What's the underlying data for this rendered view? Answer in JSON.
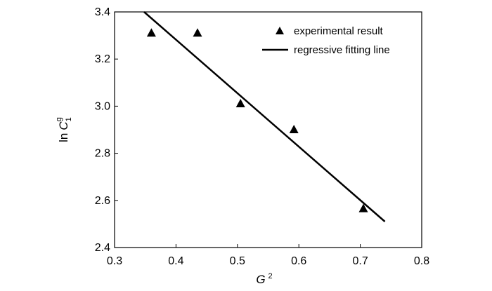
{
  "chart_data": {
    "type": "scatter",
    "title": "",
    "xlabel": "G",
    "xlabel_sup": "2",
    "ylabel_prefix": "ln",
    "ylabel_var": "C",
    "ylabel_sub": "1",
    "ylabel_sup": "g",
    "xlim": [
      0.3,
      0.8
    ],
    "ylim": [
      2.4,
      3.4
    ],
    "xticks": [
      0.3,
      0.4,
      0.5,
      0.6,
      0.7,
      0.8
    ],
    "xtick_labels": [
      "0.3",
      "0.4",
      "0.5",
      "0.6",
      "0.7",
      "0.8"
    ],
    "yticks": [
      2.4,
      2.6,
      2.8,
      3.0,
      3.2,
      3.4
    ],
    "ytick_labels": [
      "2.4",
      "2.6",
      "2.8",
      "3.0",
      "3.2",
      "3.4"
    ],
    "grid": false,
    "legend_position": "top-right",
    "series": [
      {
        "name": "experimental result",
        "marker": "triangle",
        "color": "#000000",
        "points": [
          {
            "x": 0.36,
            "y": 3.31
          },
          {
            "x": 0.435,
            "y": 3.31
          },
          {
            "x": 0.505,
            "y": 3.01
          },
          {
            "x": 0.592,
            "y": 2.9
          },
          {
            "x": 0.705,
            "y": 2.565
          }
        ]
      },
      {
        "name": "regressive fitting line",
        "style": "line",
        "color": "#000000",
        "points": [
          {
            "x": 0.348,
            "y": 3.4
          },
          {
            "x": 0.74,
            "y": 2.51
          }
        ]
      }
    ]
  }
}
